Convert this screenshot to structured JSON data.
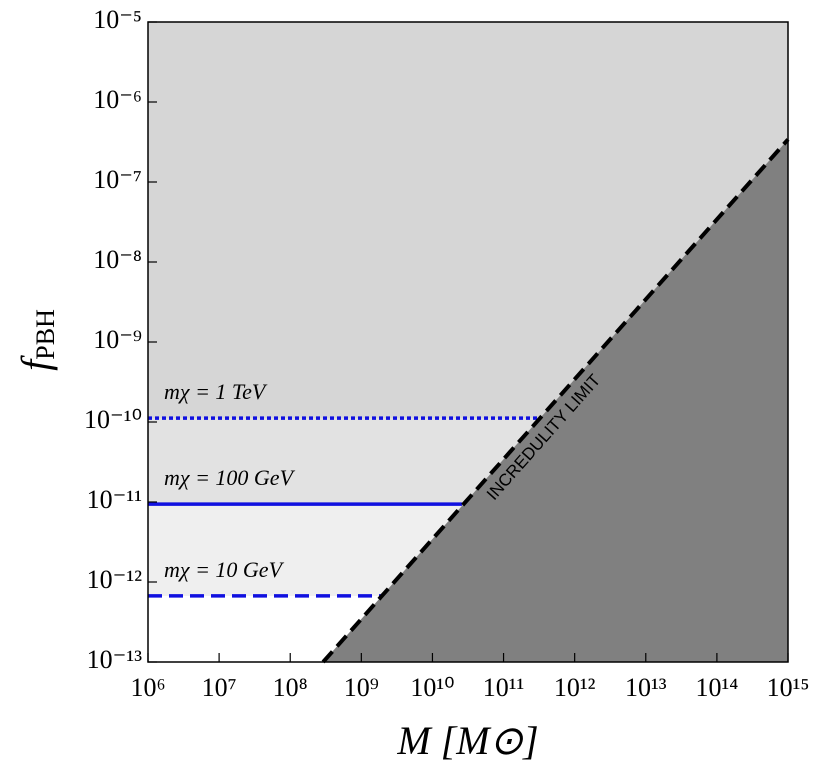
{
  "chart_data": {
    "type": "line",
    "xlabel": "M [M⊙]",
    "ylabel": "f",
    "ylabel_subscript": "PBH",
    "xscale": "log",
    "yscale": "log",
    "xlim": [
      1000000.0,
      1000000000000000.0
    ],
    "ylim": [
      1e-13,
      1e-05
    ],
    "xticks": [
      {
        "value": 1000000.0,
        "label": "10⁶"
      },
      {
        "value": 10000000.0,
        "label": "10⁷"
      },
      {
        "value": 100000000.0,
        "label": "10⁸"
      },
      {
        "value": 1000000000.0,
        "label": "10⁹"
      },
      {
        "value": 10000000000.0,
        "label": "10¹⁰"
      },
      {
        "value": 100000000000.0,
        "label": "10¹¹"
      },
      {
        "value": 1000000000000.0,
        "label": "10¹²"
      },
      {
        "value": 10000000000000.0,
        "label": "10¹³"
      },
      {
        "value": 100000000000000.0,
        "label": "10¹⁴"
      },
      {
        "value": 1000000000000000.0,
        "label": "10¹⁵"
      }
    ],
    "yticks": [
      {
        "value": 1e-13,
        "label": "10⁻¹³"
      },
      {
        "value": 1e-12,
        "label": "10⁻¹²"
      },
      {
        "value": 1e-11,
        "label": "10⁻¹¹"
      },
      {
        "value": 1e-10,
        "label": "10⁻¹⁰"
      },
      {
        "value": 1e-09,
        "label": "10⁻⁹"
      },
      {
        "value": 1e-08,
        "label": "10⁻⁸"
      },
      {
        "value": 1e-07,
        "label": "10⁻⁷"
      },
      {
        "value": 1e-06,
        "label": "10⁻⁶"
      },
      {
        "value": 1e-05,
        "label": "10⁻⁵"
      }
    ],
    "series": [
      {
        "name": "mχ = 10 GeV",
        "color": "#1010e0",
        "dash": "dashed",
        "fill": "#efefef",
        "x": [
          1000000.0,
          1950000000.0
        ],
        "values": [
          6.7e-13,
          6.7e-13
        ]
      },
      {
        "name": "mχ = 100 GeV",
        "color": "#1010e0",
        "dash": "solid",
        "fill": "#e2e2e2",
        "x": [
          1000000.0,
          26000000000.0
        ],
        "values": [
          9.4e-12,
          9.4e-12
        ]
      },
      {
        "name": "mχ = 1 TeV",
        "color": "#1010e0",
        "dash": "dotted",
        "fill": "#d6d6d6",
        "x": [
          1000000.0,
          320000000000.0
        ],
        "values": [
          1.12e-10,
          1.12e-10
        ]
      }
    ],
    "limit": {
      "label": "INCREDULITY LIMIT",
      "color": "#000000",
      "fill": "#808080",
      "dash": "dashed",
      "x": [
        290000000.0,
        1000000000000000.0
      ],
      "values": [
        1e-13,
        3.4e-07
      ]
    }
  }
}
